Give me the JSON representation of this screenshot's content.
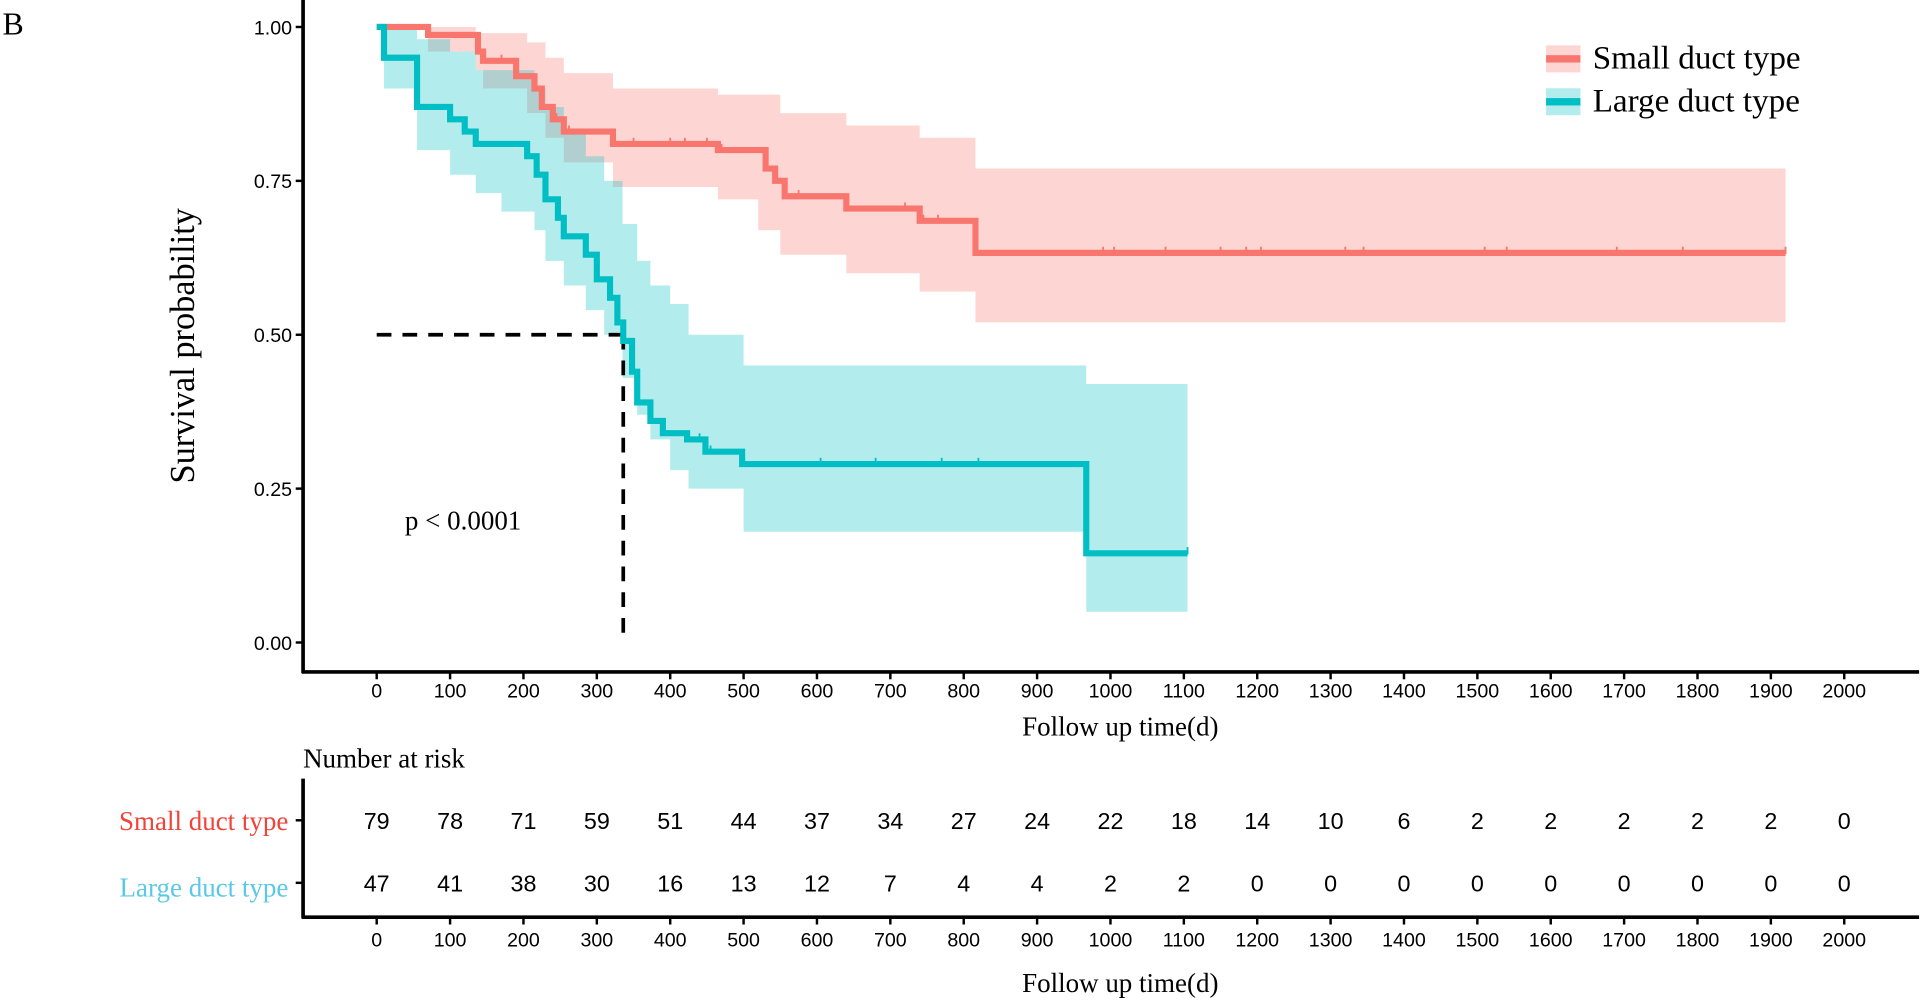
{
  "panel_label": "B",
  "chart_data": {
    "type": "line",
    "subtype": "kaplan-meier",
    "ylabel": "Survival probability",
    "xlabel": "Follow up time(d)",
    "xlim": [
      0,
      2000
    ],
    "ylim": [
      0,
      1
    ],
    "x_ticks": [
      0,
      100,
      200,
      300,
      400,
      500,
      600,
      700,
      800,
      900,
      1000,
      1100,
      1200,
      1300,
      1400,
      1500,
      1600,
      1700,
      1800,
      1900,
      2000
    ],
    "y_ticks": [
      "0.00",
      "0.25",
      "0.50",
      "0.75",
      "1.00"
    ],
    "annotation": "p < 0.0001",
    "median_line": {
      "survival": 0.5,
      "time": 336
    },
    "legend_position": "top-right",
    "grid": false,
    "series": [
      {
        "name": "Small duct type",
        "color": "#F8766D",
        "steps": [
          [
            0,
            1
          ],
          [
            70,
            0.987
          ],
          [
            138,
            0.96
          ],
          [
            145,
            0.945
          ],
          [
            190,
            0.92
          ],
          [
            215,
            0.9
          ],
          [
            225,
            0.87
          ],
          [
            240,
            0.85
          ],
          [
            255,
            0.83
          ],
          [
            322,
            0.81
          ],
          [
            465,
            0.8
          ],
          [
            530,
            0.77
          ],
          [
            543,
            0.75
          ],
          [
            556,
            0.725
          ],
          [
            640,
            0.705
          ],
          [
            740,
            0.685
          ],
          [
            816,
            0.633
          ],
          [
            1920,
            0.633
          ]
        ],
        "ci": [
          [
            0,
            1,
            1
          ],
          [
            70,
            0.96,
            1
          ],
          [
            135,
            0.93,
            0.99
          ],
          [
            145,
            0.9,
            0.99
          ],
          [
            205,
            0.86,
            0.975
          ],
          [
            230,
            0.82,
            0.95
          ],
          [
            255,
            0.78,
            0.925
          ],
          [
            322,
            0.74,
            0.9
          ],
          [
            465,
            0.72,
            0.89
          ],
          [
            520,
            0.67,
            0.89
          ],
          [
            550,
            0.63,
            0.86
          ],
          [
            640,
            0.6,
            0.84
          ],
          [
            740,
            0.57,
            0.82
          ],
          [
            816,
            0.52,
            0.77
          ],
          [
            1920,
            0.52,
            0.77
          ]
        ],
        "censored": [
          170,
          245,
          262,
          350,
          400,
          420,
          450,
          470,
          575,
          720,
          745,
          765,
          990,
          1005,
          1075,
          1150,
          1185,
          1205,
          1320,
          1345,
          1510,
          1540,
          1690,
          1780,
          1920
        ]
      },
      {
        "name": "Large duct type",
        "color": "#00BFC4",
        "steps": [
          [
            0,
            1
          ],
          [
            10,
            0.95
          ],
          [
            55,
            0.87
          ],
          [
            100,
            0.85
          ],
          [
            120,
            0.83
          ],
          [
            135,
            0.81
          ],
          [
            205,
            0.79
          ],
          [
            218,
            0.76
          ],
          [
            230,
            0.72
          ],
          [
            247,
            0.69
          ],
          [
            255,
            0.66
          ],
          [
            285,
            0.63
          ],
          [
            300,
            0.59
          ],
          [
            318,
            0.56
          ],
          [
            328,
            0.52
          ],
          [
            336,
            0.49
          ],
          [
            348,
            0.44
          ],
          [
            355,
            0.39
          ],
          [
            373,
            0.36
          ],
          [
            390,
            0.34
          ],
          [
            423,
            0.33
          ],
          [
            448,
            0.31
          ],
          [
            498,
            0.29
          ],
          [
            967,
            0.145
          ],
          [
            1105,
            0.145
          ]
        ],
        "ci": [
          [
            0,
            1,
            1
          ],
          [
            10,
            0.9,
            1
          ],
          [
            55,
            0.8,
            0.98
          ],
          [
            100,
            0.76,
            0.96
          ],
          [
            135,
            0.73,
            0.93
          ],
          [
            170,
            0.7,
            0.93
          ],
          [
            215,
            0.67,
            0.9
          ],
          [
            230,
            0.62,
            0.87
          ],
          [
            255,
            0.58,
            0.83
          ],
          [
            285,
            0.54,
            0.79
          ],
          [
            310,
            0.5,
            0.75
          ],
          [
            335,
            0.43,
            0.68
          ],
          [
            355,
            0.37,
            0.62
          ],
          [
            373,
            0.33,
            0.58
          ],
          [
            400,
            0.28,
            0.55
          ],
          [
            425,
            0.25,
            0.5
          ],
          [
            500,
            0.18,
            0.45
          ],
          [
            967,
            0.05,
            0.42
          ],
          [
            1105,
            0.05,
            0.42
          ]
        ],
        "censored": [
          440,
          455,
          605,
          680,
          770,
          820,
          1105
        ]
      }
    ],
    "risk_table": {
      "title": "Number at risk",
      "xlabel": "Follow up time(d)",
      "rows": [
        {
          "name": "Small duct type",
          "color": "#F8766D",
          "values": [
            79,
            78,
            71,
            59,
            51,
            44,
            37,
            34,
            27,
            24,
            22,
            18,
            14,
            10,
            6,
            2,
            2,
            2,
            2,
            2,
            0
          ]
        },
        {
          "name": "Large duct type",
          "color": "#5BC8E8",
          "values": [
            47,
            41,
            38,
            30,
            16,
            13,
            12,
            7,
            4,
            4,
            2,
            2,
            0,
            0,
            0,
            0,
            0,
            0,
            0,
            0,
            0
          ]
        }
      ]
    }
  }
}
